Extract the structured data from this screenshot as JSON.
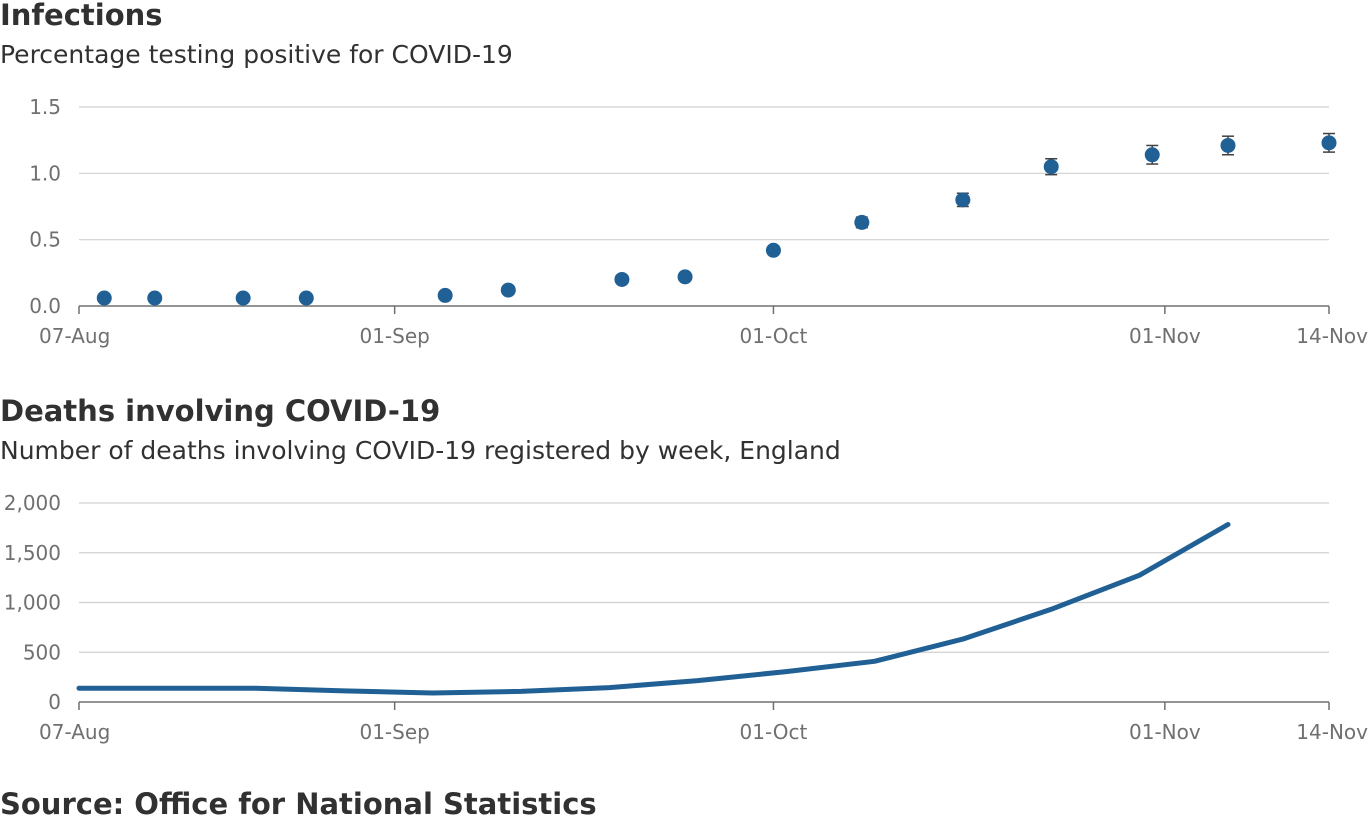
{
  "chart_data": [
    {
      "type": "scatter",
      "title": "Infections",
      "subtitle": "Percentage testing positive for COVID-19",
      "x_ticks": [
        "07-Aug",
        "01-Sep",
        "01-Oct",
        "01-Nov",
        "14-Nov"
      ],
      "y_ticks": [
        "0.0",
        "0.5",
        "1.0",
        "1.5"
      ],
      "ylim": [
        0,
        1.5
      ],
      "grid": true,
      "error_bars": true,
      "color": "#206095",
      "points": [
        {
          "x": "2020-08-09",
          "y": 0.06,
          "low": 0.05,
          "high": 0.07
        },
        {
          "x": "2020-08-13",
          "y": 0.06,
          "low": 0.05,
          "high": 0.07
        },
        {
          "x": "2020-08-20",
          "y": 0.06,
          "low": 0.05,
          "high": 0.07
        },
        {
          "x": "2020-08-25",
          "y": 0.06,
          "low": 0.05,
          "high": 0.07
        },
        {
          "x": "2020-09-05",
          "y": 0.08,
          "low": 0.07,
          "high": 0.09
        },
        {
          "x": "2020-09-10",
          "y": 0.12,
          "low": 0.1,
          "high": 0.13
        },
        {
          "x": "2020-09-19",
          "y": 0.2,
          "low": 0.18,
          "high": 0.22
        },
        {
          "x": "2020-09-24",
          "y": 0.22,
          "low": 0.2,
          "high": 0.24
        },
        {
          "x": "2020-10-01",
          "y": 0.42,
          "low": 0.39,
          "high": 0.45
        },
        {
          "x": "2020-10-08",
          "y": 0.63,
          "low": 0.59,
          "high": 0.67
        },
        {
          "x": "2020-10-16",
          "y": 0.8,
          "low": 0.75,
          "high": 0.85
        },
        {
          "x": "2020-10-23",
          "y": 1.05,
          "low": 0.99,
          "high": 1.11
        },
        {
          "x": "2020-10-31",
          "y": 1.14,
          "low": 1.07,
          "high": 1.21
        },
        {
          "x": "2020-11-06",
          "y": 1.21,
          "low": 1.14,
          "high": 1.28
        },
        {
          "x": "2020-11-14",
          "y": 1.23,
          "low": 1.16,
          "high": 1.3
        }
      ]
    },
    {
      "type": "line",
      "title": "Deaths involving COVID-19",
      "subtitle": "Number of deaths involving COVID-19 registered by week, England",
      "x_ticks": [
        "07-Aug",
        "01-Sep",
        "01-Oct",
        "01-Nov",
        "14-Nov"
      ],
      "y_ticks": [
        "0",
        "500",
        "1,000",
        "1,500",
        "2,000"
      ],
      "ylim": [
        0,
        2000
      ],
      "grid": true,
      "color": "#206095",
      "points": [
        {
          "x": "2020-08-07",
          "y": 139
        },
        {
          "x": "2020-08-14",
          "y": 138
        },
        {
          "x": "2020-08-21",
          "y": 138
        },
        {
          "x": "2020-08-28",
          "y": 112
        },
        {
          "x": "2020-09-04",
          "y": 90
        },
        {
          "x": "2020-09-11",
          "y": 107
        },
        {
          "x": "2020-09-18",
          "y": 145
        },
        {
          "x": "2020-09-25",
          "y": 215
        },
        {
          "x": "2020-10-02",
          "y": 306
        },
        {
          "x": "2020-10-09",
          "y": 409
        },
        {
          "x": "2020-10-16",
          "y": 632
        },
        {
          "x": "2020-10-23",
          "y": 932
        },
        {
          "x": "2020-10-30",
          "y": 1274
        },
        {
          "x": "2020-11-06",
          "y": 1784
        }
      ]
    }
  ],
  "source": "Source: Office for National Statistics"
}
